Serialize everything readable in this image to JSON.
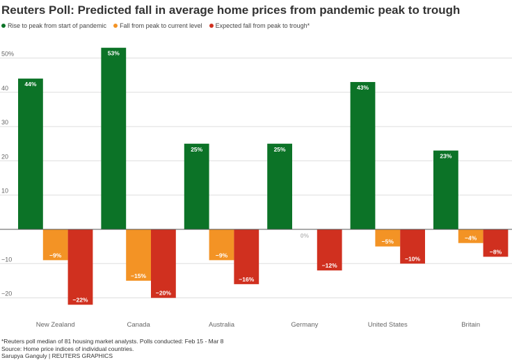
{
  "chart_data": {
    "type": "bar",
    "title": "Reuters Poll: Predicted fall in average home prices from pandemic peak to trough",
    "categories": [
      "New Zealand",
      "Canada",
      "Australia",
      "Germany",
      "United States",
      "Britain"
    ],
    "series": [
      {
        "name": "Rise to peak from start of pandemic",
        "color": "#0c7327",
        "values": [
          44,
          53,
          25,
          25,
          43,
          23
        ],
        "labels": [
          "44%",
          "53%",
          "25%",
          "25%",
          "43%",
          "23%"
        ]
      },
      {
        "name": "Fall from peak to current level",
        "color": "#f39325",
        "values": [
          -9,
          -15,
          -9,
          0,
          -5,
          -4
        ],
        "labels": [
          "−9%",
          "−15%",
          "−9%",
          "0%",
          "−5%",
          "−4%"
        ]
      },
      {
        "name": "Expected fall from peak to trough*",
        "color": "#d0301f",
        "values": [
          -22,
          -20,
          -16,
          -12,
          -10,
          -8
        ],
        "labels": [
          "−22%",
          "−20%",
          "−16%",
          "−12%",
          "−10%",
          "−8%"
        ]
      }
    ],
    "yticks": [
      50,
      40,
      30,
      20,
      10,
      0,
      -10,
      -20
    ],
    "ytick_labels": [
      "50%",
      "40",
      "30",
      "20",
      "10",
      "",
      "−10",
      "−20"
    ],
    "ylim": [
      -23,
      55
    ],
    "xlabel": "",
    "ylabel": "",
    "grid": true,
    "legend_position": "top-left"
  },
  "footnote": "*Reuters poll median of 81 housing market analysts. Polls conducted: Feb 15 - Mar 8",
  "source": "Source: Home price indices of individual countries.",
  "credit": "Sarupya Ganguly | REUTERS GRAPHICS"
}
